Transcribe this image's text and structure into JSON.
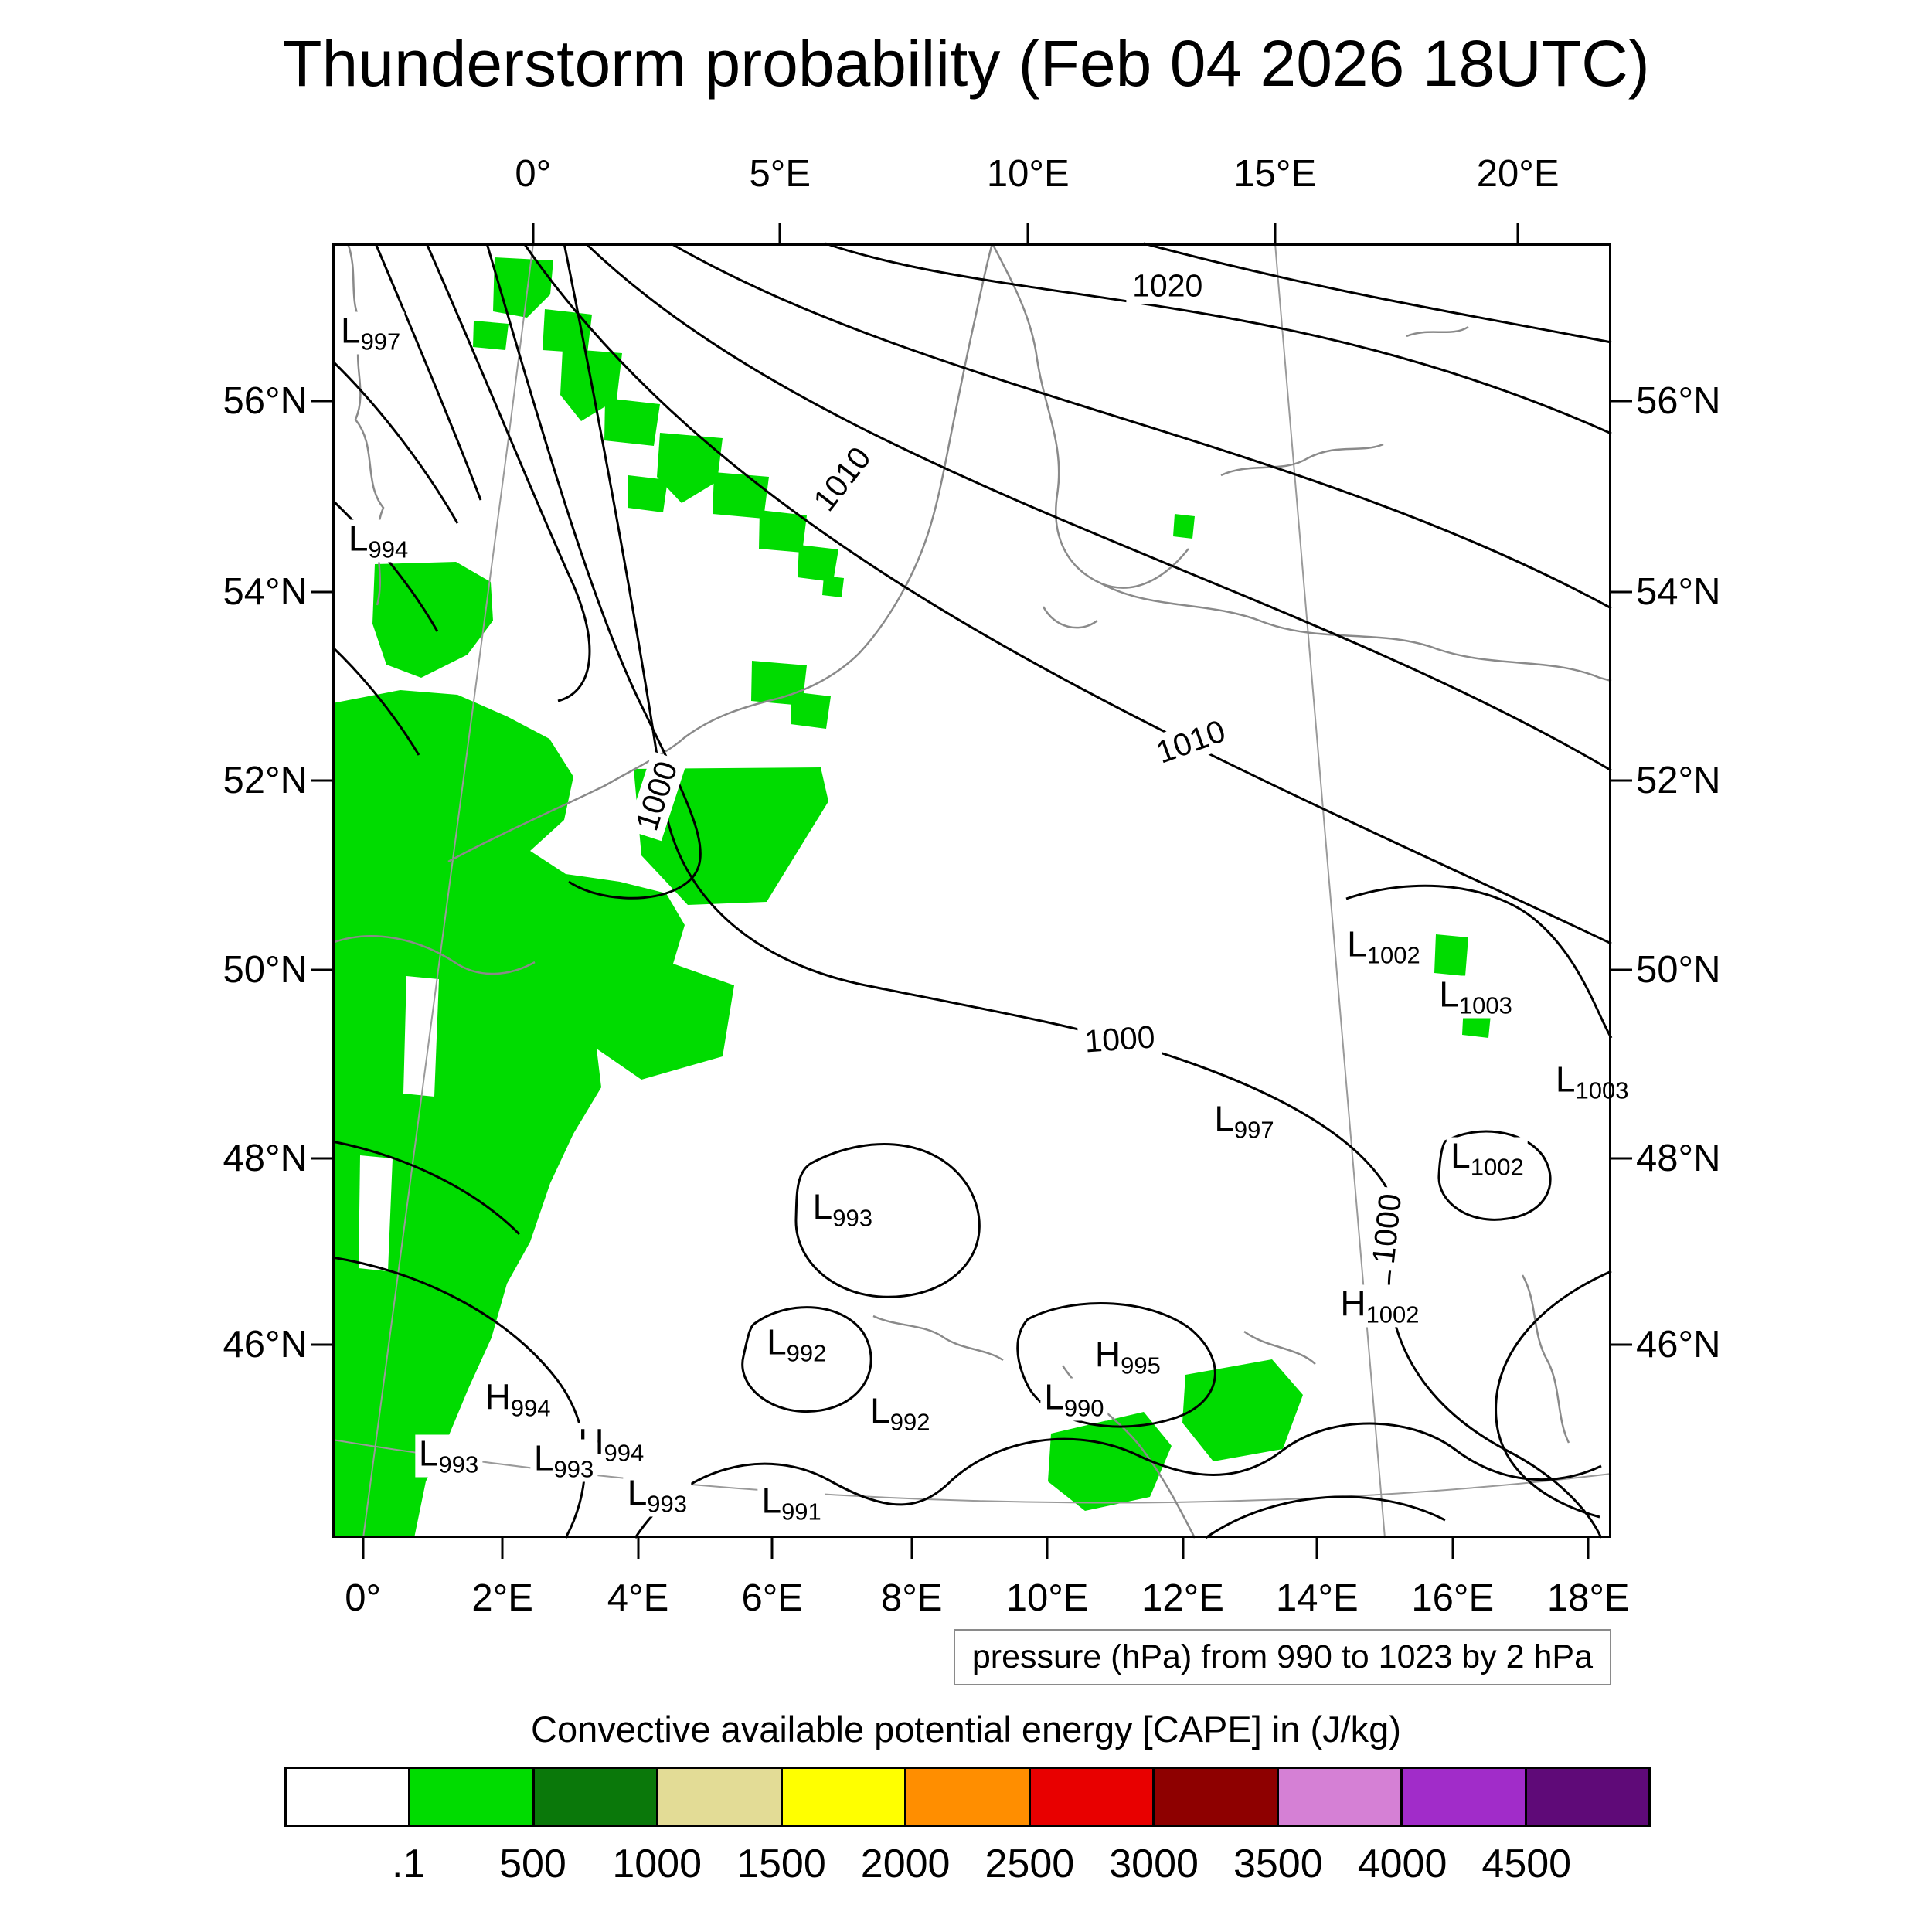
{
  "title": "Thunderstorm probability (Feb 04 2026 18UTC)",
  "pressure_note": "pressure (hPa) from 990 to 1023 by 2 hPa",
  "legend": {
    "title": "Convective available potential energy [CAPE] in (J/kg)",
    "labels": [
      ".1",
      "500",
      "1000",
      "1500",
      "2000",
      "2500",
      "3000",
      "3500",
      "4000",
      "4500"
    ],
    "colors": [
      "#ffffff",
      "#00dc00",
      "#0a780a",
      "#e3dc96",
      "#ffff00",
      "#ff8e00",
      "#e80000",
      "#8e0000",
      "#d580d5",
      "#a12cc9",
      "#5f0a78"
    ]
  },
  "axes": {
    "lon_top": [
      {
        "label": "0°",
        "x": 15.7
      },
      {
        "label": "5°E",
        "x": 35.0
      },
      {
        "label": "10°E",
        "x": 54.4
      },
      {
        "label": "15°E",
        "x": 73.7
      },
      {
        "label": "20°E",
        "x": 92.7
      }
    ],
    "lon_bottom": [
      {
        "label": "0°",
        "x": 2.4
      },
      {
        "label": "2°E",
        "x": 13.3
      },
      {
        "label": "4°E",
        "x": 23.9
      },
      {
        "label": "6°E",
        "x": 34.4
      },
      {
        "label": "8°E",
        "x": 45.3
      },
      {
        "label": "10°E",
        "x": 55.9
      },
      {
        "label": "12°E",
        "x": 66.5
      },
      {
        "label": "14°E",
        "x": 77.0
      },
      {
        "label": "16°E",
        "x": 87.6
      },
      {
        "label": "18°E",
        "x": 98.2
      }
    ],
    "lat": [
      {
        "label": "56°N",
        "y": 12.2
      },
      {
        "label": "54°N",
        "y": 26.9
      },
      {
        "label": "52°N",
        "y": 41.5
      },
      {
        "label": "50°N",
        "y": 56.1
      },
      {
        "label": "48°N",
        "y": 70.7
      },
      {
        "label": "46°N",
        "y": 85.1
      }
    ]
  },
  "chart_data": {
    "type": "map-contour",
    "title": "Thunderstorm probability (Feb 04 2026 18UTC)",
    "valid_time": "Feb 04 2026 18UTC",
    "lon_range": [
      "0°",
      "20°E"
    ],
    "lat_range": [
      "46°N",
      "56°N"
    ],
    "contour_field": "pressure",
    "contour_units": "hPa",
    "contour_range": {
      "from": 990,
      "to": 1023,
      "by": 2
    },
    "shading_field": "Convective available potential energy [CAPE]",
    "shading_units": "J/kg",
    "shading_levels": [
      0.1,
      500,
      1000,
      1500,
      2000,
      2500,
      3000,
      3500,
      4000,
      4500
    ],
    "shading_colors": [
      "#ffffff",
      "#00dc00",
      "#0a780a",
      "#e3dc96",
      "#ffff00",
      "#ff8e00",
      "#e80000",
      "#8e0000",
      "#d580d5",
      "#a12cc9",
      "#5f0a78"
    ],
    "shaded_regions_note": "Only the 0.1–500 J/kg CAPE band (bright green) is present: large area over the eastern Atlantic / English Channel / Benelux, a diagonal band over the North Sea, and small patches over northern Italy, the Adriatic and eastern Alps",
    "contour_labels": [
      {
        "text": "1020",
        "x": 65.3,
        "y": 3.3,
        "rot": 0
      },
      {
        "text": "1010",
        "x": 39.9,
        "y": 18.2,
        "rot": -52
      },
      {
        "text": "1010",
        "x": 67.1,
        "y": 38.5,
        "rot": -20
      },
      {
        "text": "1000",
        "x": 25.4,
        "y": 42.7,
        "rot": -72
      },
      {
        "text": "1000",
        "x": 61.6,
        "y": 61.5,
        "rot": -4
      },
      {
        "text": "1000",
        "x": 82.5,
        "y": 76.1,
        "rot": -84
      }
    ],
    "pressure_centers": [
      {
        "type": "L",
        "value": "997",
        "x": 3.0,
        "y": 6.9
      },
      {
        "type": "L",
        "value": "994",
        "x": 3.6,
        "y": 23.0
      },
      {
        "type": "L",
        "value": "1002",
        "x": 82.2,
        "y": 54.3
      },
      {
        "type": "L",
        "value": "1003",
        "x": 89.4,
        "y": 58.2
      },
      {
        "type": "L",
        "value": "1003",
        "x": 98.5,
        "y": 64.8
      },
      {
        "type": "L",
        "value": "997",
        "x": 71.3,
        "y": 67.8
      },
      {
        "type": "L",
        "value": "1002",
        "x": 90.3,
        "y": 70.7
      },
      {
        "type": "H",
        "value": "1002",
        "x": 81.9,
        "y": 82.1
      },
      {
        "type": "L",
        "value": "993",
        "x": 39.9,
        "y": 74.6
      },
      {
        "type": "L",
        "value": "992",
        "x": 36.3,
        "y": 85.1
      },
      {
        "type": "H",
        "value": "995",
        "x": 62.2,
        "y": 86.0
      },
      {
        "type": "L",
        "value": "990",
        "x": 58.0,
        "y": 89.3
      },
      {
        "type": "H",
        "value": "994",
        "x": 14.5,
        "y": 89.3
      },
      {
        "type": "L",
        "value": "993",
        "x": 9.1,
        "y": 93.7
      },
      {
        "type": "H",
        "value": "994",
        "x": 21.8,
        "y": 92.8
      },
      {
        "type": "L",
        "value": "993",
        "x": 18.1,
        "y": 94.0
      },
      {
        "type": "L",
        "value": "993",
        "x": 25.4,
        "y": 96.7
      },
      {
        "type": "L",
        "value": "992",
        "x": 44.4,
        "y": 90.4
      },
      {
        "type": "L",
        "value": "991",
        "x": 35.9,
        "y": 97.3
      }
    ]
  }
}
